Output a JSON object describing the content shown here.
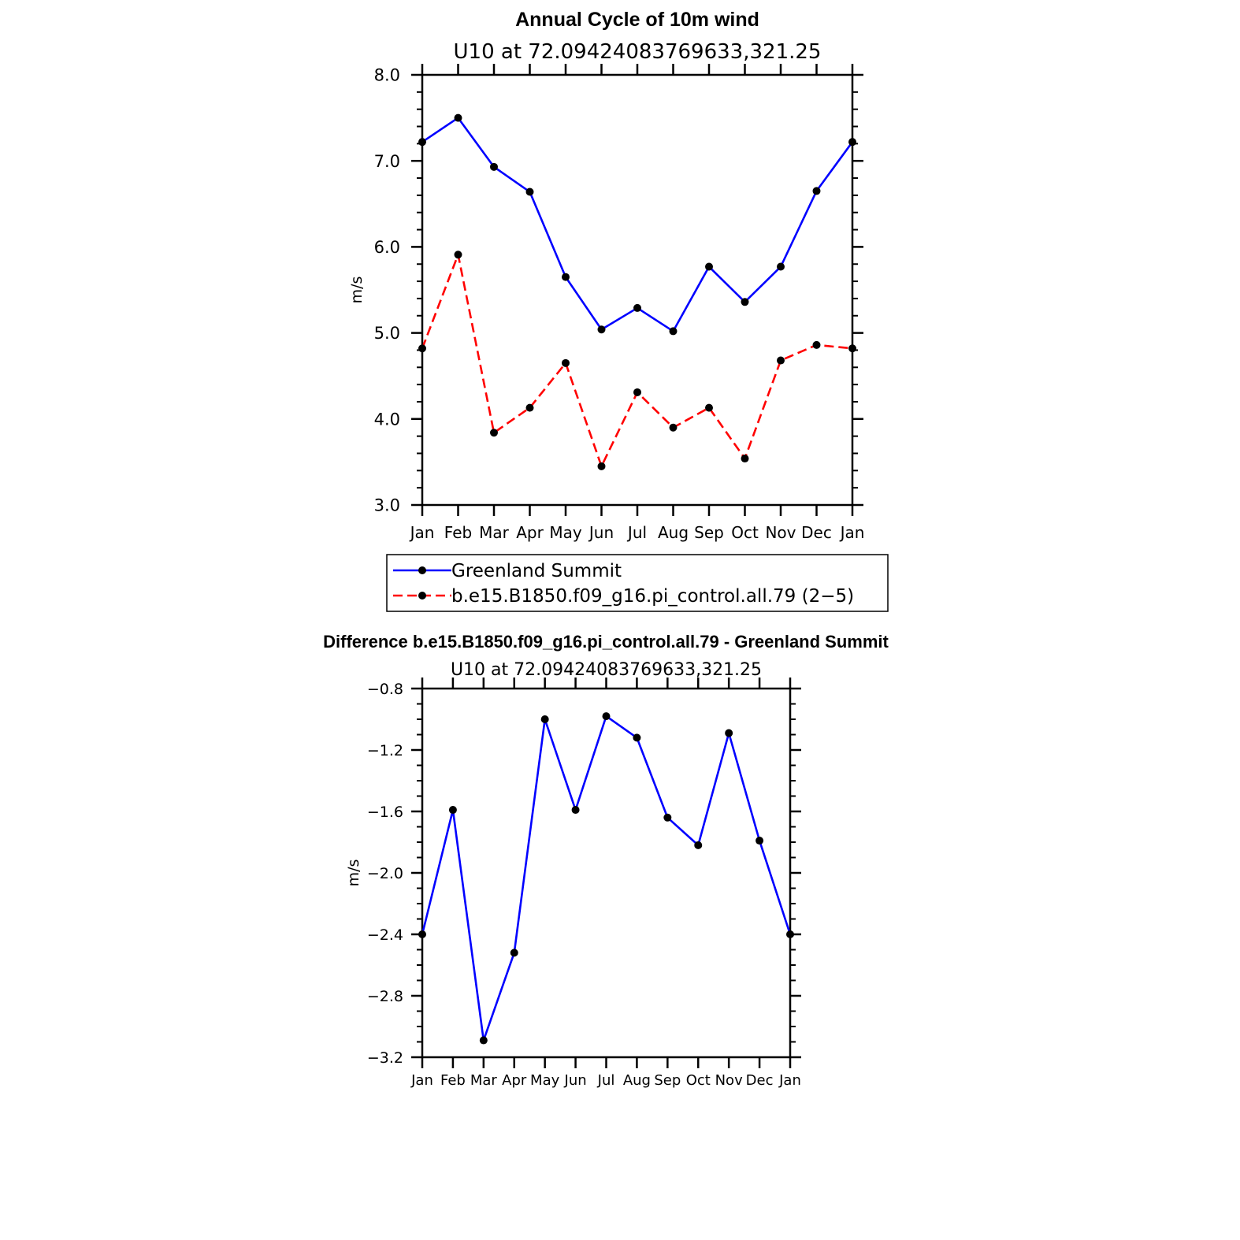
{
  "chart_data": [
    {
      "type": "line",
      "title": "Annual Cycle of 10m wind",
      "subtitle": "U10  at  72.09424083769633,321.25",
      "ylabel": "m/s",
      "ylim": [
        3.0,
        8.0
      ],
      "y_ticks": [
        "3.0",
        "4.0",
        "5.0",
        "6.0",
        "7.0",
        "8.0"
      ],
      "categories": [
        "Jan",
        "Feb",
        "Mar",
        "Apr",
        "May",
        "Jun",
        "Jul",
        "Aug",
        "Sep",
        "Oct",
        "Nov",
        "Dec",
        "Jan"
      ],
      "series": [
        {
          "name": "Greenland Summit",
          "color": "#0000ff",
          "dash": "solid",
          "values": [
            7.22,
            7.5,
            6.93,
            6.64,
            5.65,
            5.04,
            5.29,
            5.02,
            5.77,
            5.36,
            5.77,
            6.65,
            7.22
          ]
        },
        {
          "name": "b.e15.B1850.f09_g16.pi_control.all.79 (2−5)",
          "color": "#ff0000",
          "dash": "dashed",
          "values": [
            4.82,
            5.91,
            3.84,
            4.13,
            4.65,
            3.45,
            4.31,
            3.9,
            4.13,
            3.54,
            4.68,
            4.86,
            4.82
          ]
        }
      ],
      "legend_position": "bottom"
    },
    {
      "type": "line",
      "title": "Difference b.e15.B1850.f09_g16.pi_control.all.79 - Greenland Summit",
      "subtitle": "U10  at  72.09424083769633,321.25",
      "ylabel": "m/s",
      "ylim": [
        -3.2,
        -0.8
      ],
      "y_ticks": [
        "−3.2",
        "−2.8",
        "−2.4",
        "−2.0",
        "−1.6",
        "−1.2",
        "−0.8"
      ],
      "categories": [
        "Jan",
        "Feb",
        "Mar",
        "Apr",
        "May",
        "Jun",
        "Jul",
        "Aug",
        "Sep",
        "Oct",
        "Nov",
        "Dec",
        "Jan"
      ],
      "series": [
        {
          "color": "#0000ff",
          "dash": "solid",
          "values": [
            -2.4,
            -1.59,
            -3.09,
            -2.52,
            -1.0,
            -1.59,
            -0.98,
            -1.12,
            -1.64,
            -1.82,
            -1.09,
            -1.79,
            -2.4
          ]
        }
      ]
    }
  ]
}
